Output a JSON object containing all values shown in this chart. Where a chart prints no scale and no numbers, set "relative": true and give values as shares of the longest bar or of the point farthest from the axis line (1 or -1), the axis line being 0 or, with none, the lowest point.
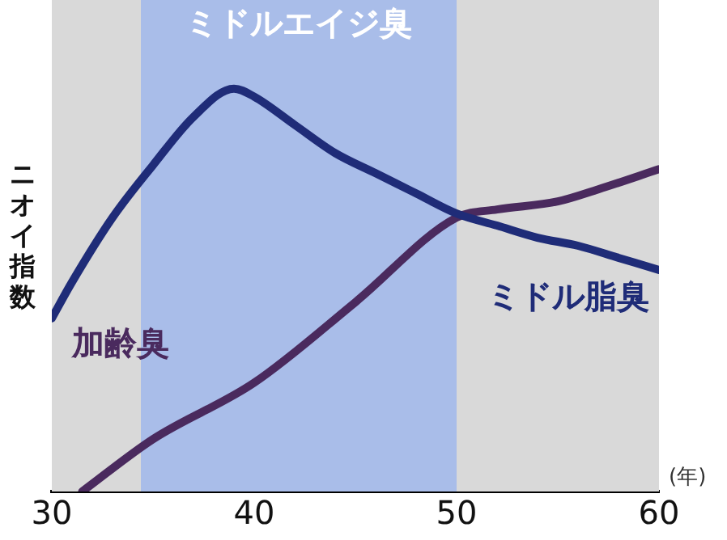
{
  "chart_data": {
    "type": "line",
    "relative": true,
    "xlabel": "(年)",
    "ylabel": "ニオイ指数",
    "xlim": [
      30,
      60
    ],
    "xticks": [
      30,
      40,
      50,
      60
    ],
    "grid": false,
    "legend": false,
    "marker": "none",
    "line_style": "solid",
    "bands": [
      {
        "axis": "x",
        "from": 34.4,
        "to": 50,
        "label": "ミドルエイジ臭",
        "color": "#a9bde9"
      }
    ],
    "series": [
      {
        "name": "ミドル脂臭",
        "color": "#1f2c78",
        "x": [
          30,
          31,
          33,
          35,
          37,
          39,
          40,
          42,
          44,
          46,
          48,
          50,
          52,
          54,
          56,
          58,
          60
        ],
        "values": [
          0.43,
          0.52,
          0.68,
          0.81,
          0.93,
          1,
          0.98,
          0.91,
          0.84,
          0.79,
          0.74,
          0.69,
          0.66,
          0.63,
          0.61,
          0.58,
          0.55
        ]
      },
      {
        "name": "加齢臭",
        "color": "#4a2a5e",
        "x": [
          31.5,
          35,
          40,
          45,
          50,
          52,
          55,
          57,
          60
        ],
        "values": [
          0,
          0.13,
          0.27,
          0.47,
          0.68,
          0.7,
          0.72,
          0.75,
          0.8
        ]
      }
    ]
  }
}
